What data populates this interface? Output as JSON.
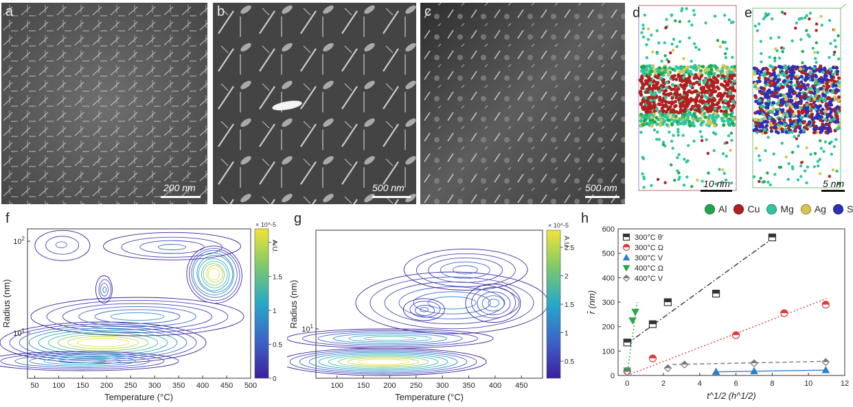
{
  "panels": {
    "a": {
      "letter": "a",
      "scale": "200 nm"
    },
    "b": {
      "letter": "b",
      "scale": "500 nm"
    },
    "c": {
      "letter": "c",
      "scale": "500 nm"
    },
    "d": {
      "letter": "d",
      "scale": "10 nm"
    },
    "e": {
      "letter": "e",
      "scale": "5 nm"
    },
    "f": {
      "letter": "f"
    },
    "g": {
      "letter": "g"
    },
    "h": {
      "letter": "h"
    }
  },
  "element_legend": [
    {
      "label": "Al",
      "color": "#1fa84a"
    },
    {
      "label": "Cu",
      "color": "#b0201e"
    },
    {
      "label": "Mg",
      "color": "#2ec6a0"
    },
    {
      "label": "Ag",
      "color": "#d8c450"
    },
    {
      "label": "Sc",
      "color": "#2c2fb8"
    }
  ],
  "chart_data": [
    {
      "id": "f",
      "type": "heatmap",
      "xlabel": "Temperature (°C)",
      "ylabel": "Radius (nm)",
      "xticks": [
        "50",
        "100",
        "150",
        "200",
        "250",
        "300",
        "350",
        "400",
        "450",
        "500"
      ],
      "yticks": [
        "10^1",
        "10^2"
      ],
      "yscale": "log",
      "colorbar_label": "A.U.",
      "colorbar_exponent": "× 10^-5",
      "colorbar_ticks": [
        "0",
        "0.5",
        "1",
        "1.5",
        "2"
      ],
      "colorbar_range": [
        0,
        2.2
      ]
    },
    {
      "id": "g",
      "type": "heatmap",
      "xlabel": "Temperature (°C)",
      "ylabel": "Radius (nm)",
      "xticks": [
        "100",
        "150",
        "200",
        "250",
        "300",
        "350",
        "400",
        "450"
      ],
      "yticks": [
        "10^1"
      ],
      "yscale": "log",
      "colorbar_label": "A.U.",
      "colorbar_exponent": "× 10^-5",
      "colorbar_ticks": [
        "0.5",
        "1",
        "1.5",
        "2",
        "2.5"
      ],
      "colorbar_range": [
        0.2,
        2.8
      ]
    },
    {
      "id": "h",
      "type": "scatter",
      "xlabel": "t^1/2 (h^1/2)",
      "ylabel": "r̄ (nm)",
      "xlim": [
        -0.5,
        12
      ],
      "ylim": [
        0,
        600
      ],
      "xticks": [
        0,
        2,
        4,
        6,
        8,
        10,
        12
      ],
      "yticks": [
        0,
        100,
        200,
        300,
        400,
        500,
        600
      ],
      "legend_position": "top-left",
      "series": [
        {
          "name": "300°C θ′",
          "color": "#333333",
          "marker": "square",
          "x": [
            0,
            1.41,
            2.24,
            4.9,
            8
          ],
          "y": [
            135,
            210,
            300,
            335,
            565
          ],
          "fit": {
            "x": [
              0,
              8
            ],
            "y": [
              130,
              560
            ],
            "style": "dash-dot"
          }
        },
        {
          "name": "300°C Ω",
          "color": "#e23a3a",
          "marker": "circle",
          "x": [
            0,
            1.41,
            6,
            8.66,
            10.95
          ],
          "y": [
            18,
            70,
            165,
            255,
            290
          ],
          "fit": {
            "x": [
              0,
              11
            ],
            "y": [
              0,
              315
            ],
            "style": "dotted"
          }
        },
        {
          "name": "300°C V",
          "color": "#2a7fd4",
          "marker": "triangle-up",
          "x": [
            4.9,
            7,
            10.95
          ],
          "y": [
            15,
            18,
            22
          ],
          "fit": {
            "x": [
              4.9,
              11
            ],
            "y": [
              15,
              22
            ],
            "style": "solid"
          }
        },
        {
          "name": "400°C Ω",
          "color": "#28a745",
          "marker": "triangle-down",
          "x": [
            0,
            0.3,
            0.45
          ],
          "y": [
            20,
            225,
            260
          ],
          "fit": {
            "x": [
              0,
              0.55
            ],
            "y": [
              5,
              300
            ],
            "style": "dotted"
          }
        },
        {
          "name": "400°C V",
          "color": "#777777",
          "marker": "diamond",
          "x": [
            0,
            2.24,
            3.16,
            7,
            10.95
          ],
          "y": [
            15,
            30,
            45,
            50,
            55
          ],
          "fit": {
            "x": [
              2.5,
              11
            ],
            "y": [
              45,
              58
            ],
            "style": "dashed"
          }
        }
      ]
    }
  ]
}
